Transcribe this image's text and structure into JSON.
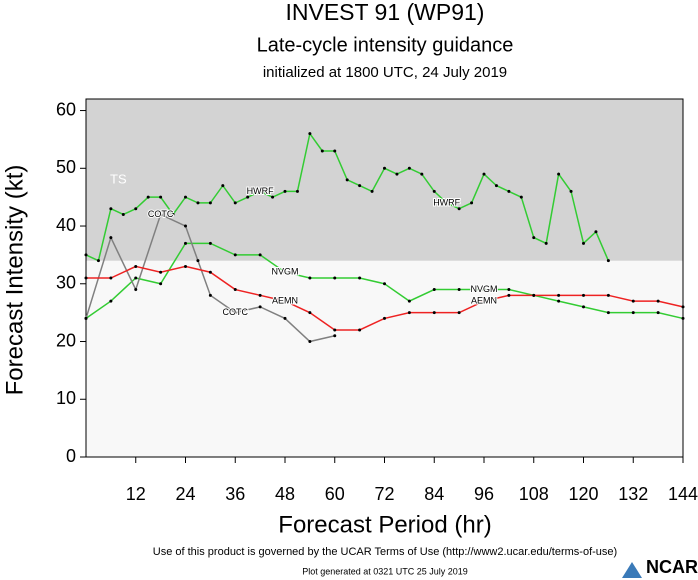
{
  "chart_data": {
    "type": "line",
    "title": "INVEST 91 (WP91)",
    "subtitle": "Late-cycle intensity guidance",
    "initialized": "initialized at 1800 UTC, 24 July 2019",
    "y_label": "Forecast Intensity (kt)",
    "x_label": "Forecast Period (hr)",
    "footer": "Use of this product is governed by the UCAR Terms of Use (http://www2.ucar.edu/terms-of-use)",
    "generated": "Plot generated at 0321 UTC   25 July 2019",
    "logo": "NCAR",
    "band": {
      "label": "TS",
      "from": 34,
      "color": "#d3d3d3"
    },
    "background": "#f8f8f8",
    "xlim": [
      0,
      144
    ],
    "xticks": [
      12,
      24,
      36,
      48,
      60,
      72,
      84,
      96,
      108,
      120,
      132,
      144
    ],
    "ylim": [
      0,
      62
    ],
    "yticks": [
      0,
      10,
      20,
      30,
      40,
      50,
      60
    ],
    "series": [
      {
        "name": "HWRF",
        "color": "#33cc33",
        "x": [
          0,
          3,
          6,
          9,
          12,
          15,
          18,
          21,
          24,
          27,
          30,
          33,
          36,
          39,
          42,
          45,
          48,
          51,
          54,
          57,
          60,
          63,
          66,
          69,
          72,
          75,
          78,
          81,
          84,
          87,
          90,
          93,
          96,
          99,
          102,
          105,
          108,
          111,
          114,
          117,
          120,
          123,
          126
        ],
        "values": [
          35,
          34,
          43,
          42,
          43,
          45,
          45,
          42,
          45,
          44,
          44,
          47,
          44,
          45,
          46,
          45,
          46,
          46,
          56,
          53,
          53,
          48,
          47,
          46,
          50,
          49,
          50,
          49,
          46,
          44,
          43,
          44,
          49,
          47,
          46,
          45,
          38,
          37,
          49,
          46,
          37,
          39,
          34
        ]
      },
      {
        "name": "NVGM",
        "color": "#33cc33",
        "x": [
          0,
          6,
          12,
          18,
          24,
          30,
          36,
          42,
          48,
          54,
          60,
          66,
          72,
          78,
          84,
          90,
          96,
          102,
          108,
          114,
          120,
          126,
          132,
          138,
          144
        ],
        "values": [
          24,
          27,
          31,
          30,
          37,
          37,
          35,
          35,
          32,
          31,
          31,
          31,
          30,
          27,
          29,
          29,
          29,
          29,
          28,
          27,
          26,
          25,
          25,
          25,
          24
        ]
      },
      {
        "name": "COTC",
        "color": "#808080",
        "x": [
          0,
          6,
          12,
          18,
          24,
          27,
          30,
          36,
          42,
          48,
          54,
          60
        ],
        "values": [
          24,
          38,
          29,
          42,
          40,
          34,
          28,
          25,
          26,
          24,
          20,
          21
        ]
      },
      {
        "name": "AEMN",
        "color": "#ee2222",
        "x": [
          0,
          6,
          12,
          18,
          24,
          30,
          36,
          42,
          48,
          54,
          60,
          66,
          72,
          78,
          84,
          90,
          96,
          102,
          108,
          114,
          120,
          126,
          132,
          138,
          144
        ],
        "values": [
          31,
          31,
          33,
          32,
          33,
          32,
          29,
          28,
          27,
          25,
          22,
          22,
          24,
          25,
          25,
          25,
          27,
          28,
          28,
          28,
          28,
          28,
          27,
          27,
          26
        ]
      }
    ]
  }
}
